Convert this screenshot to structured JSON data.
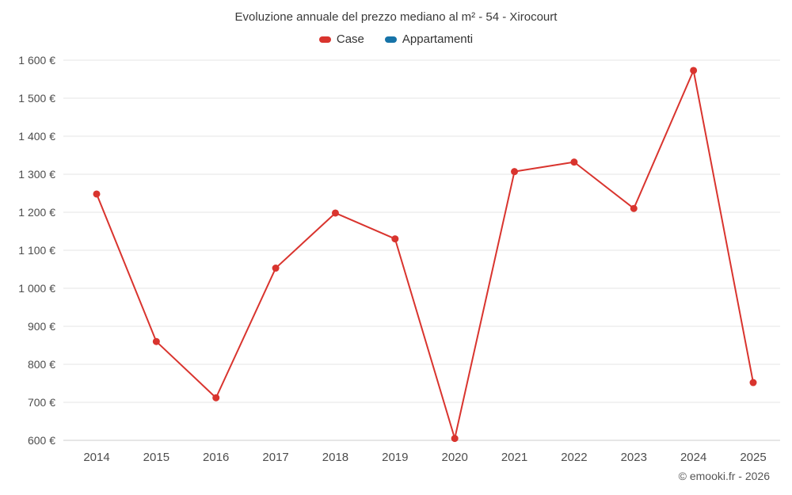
{
  "chart": {
    "title": "Evoluzione annuale del prezzo mediano al m² - 54 - Xirocourt",
    "footer": "© emooki.fr - 2026",
    "legend": [
      {
        "label": "Case",
        "color": "#d9342e"
      },
      {
        "label": "Appartamenti",
        "color": "#1673a8"
      }
    ]
  },
  "chart_data": {
    "type": "line",
    "title": "Evoluzione annuale del prezzo mediano al m² - 54 - Xirocourt",
    "x": [
      2014,
      2015,
      2016,
      2017,
      2018,
      2019,
      2020,
      2021,
      2022,
      2023,
      2024,
      2025
    ],
    "series": [
      {
        "name": "Case",
        "color": "#d9342e",
        "values": [
          1248,
          860,
          712,
          1053,
          1198,
          1130,
          605,
          1307,
          1332,
          1210,
          1573,
          752
        ]
      },
      {
        "name": "Appartamenti",
        "color": "#1673a8",
        "values": []
      }
    ],
    "xlabel": "",
    "ylabel": "",
    "ylim": [
      600,
      1600
    ],
    "ytick_step": 100,
    "ytick_format": "{value} €",
    "grid": "horizontal",
    "legend_position": "top",
    "grid_color": "#e6e6e6",
    "axis_line_color": "#cccccc",
    "tick_label_color": "#4d4d4d"
  }
}
